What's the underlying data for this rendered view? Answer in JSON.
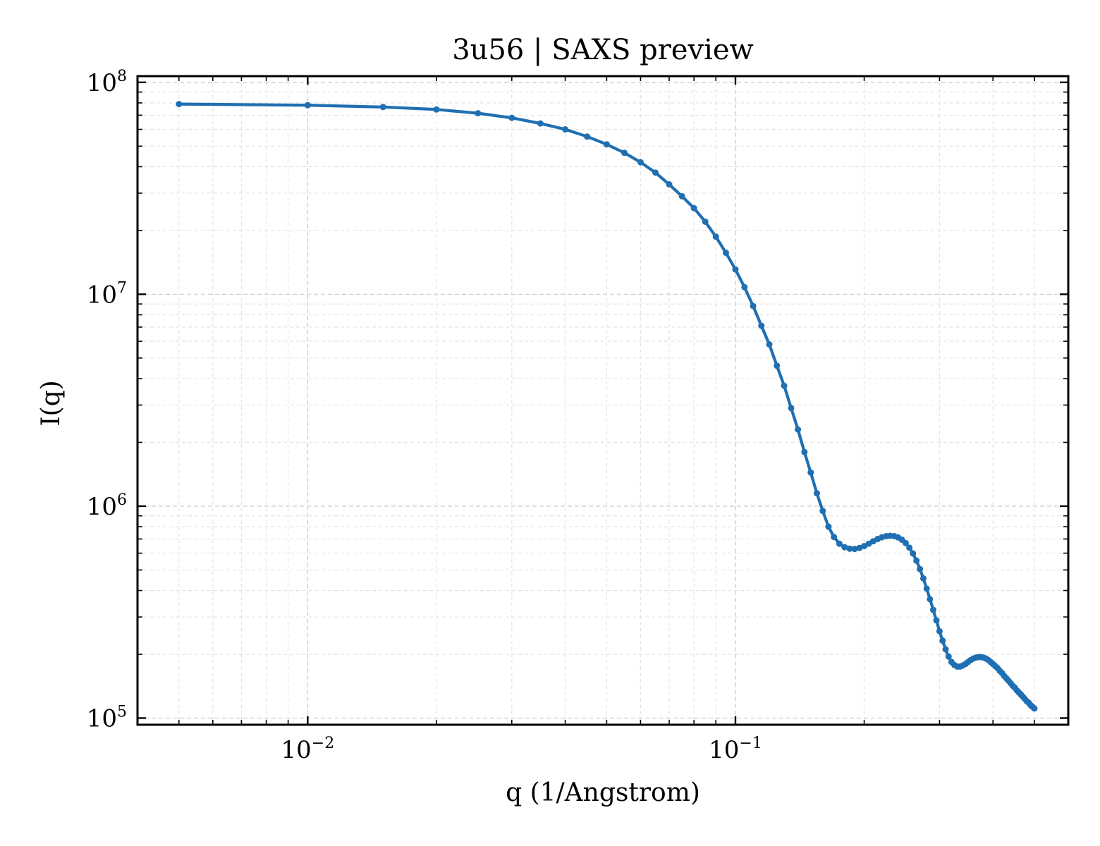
{
  "chart_data": {
    "type": "line",
    "title": "3u56 | SAXS preview",
    "xlabel": "q (1/Angstrom)",
    "ylabel": "I(q)",
    "xscale": "log",
    "yscale": "log",
    "xlim": [
      0.004,
      0.6
    ],
    "ylim": [
      93000,
      107000000
    ],
    "grid": true,
    "x_ticks": [
      {
        "value": 0.01,
        "base": "10",
        "exp": "−2"
      },
      {
        "value": 0.1,
        "base": "10",
        "exp": "−1"
      }
    ],
    "y_ticks": [
      {
        "value": 100000,
        "base": "10",
        "exp": "5"
      },
      {
        "value": 1000000,
        "base": "10",
        "exp": "6"
      },
      {
        "value": 10000000,
        "base": "10",
        "exp": "7"
      },
      {
        "value": 100000000,
        "base": "10",
        "exp": "8"
      }
    ],
    "series": [
      {
        "color": "#1f6fb2",
        "marker": "dot",
        "x": [
          0.005,
          0.01,
          0.015,
          0.02,
          0.025,
          0.03,
          0.035,
          0.04,
          0.045,
          0.05,
          0.055,
          0.06,
          0.065,
          0.07,
          0.075,
          0.08,
          0.085,
          0.09,
          0.095,
          0.1,
          0.105,
          0.11,
          0.115,
          0.12,
          0.125,
          0.13,
          0.135,
          0.14,
          0.145,
          0.15,
          0.155,
          0.16,
          0.165,
          0.17,
          0.175,
          0.18,
          0.185,
          0.19,
          0.195,
          0.2,
          0.205,
          0.21,
          0.215,
          0.22,
          0.225,
          0.23,
          0.235,
          0.24,
          0.245,
          0.25,
          0.255,
          0.26,
          0.265,
          0.27,
          0.275,
          0.28,
          0.285,
          0.29,
          0.295,
          0.3,
          0.305,
          0.31,
          0.315,
          0.32,
          0.325,
          0.33,
          0.335,
          0.34,
          0.345,
          0.35,
          0.355,
          0.36,
          0.365,
          0.37,
          0.375,
          0.38,
          0.385,
          0.39,
          0.395,
          0.4,
          0.405,
          0.41,
          0.415,
          0.42,
          0.425,
          0.43,
          0.435,
          0.44,
          0.445,
          0.45,
          0.455,
          0.46,
          0.465,
          0.47,
          0.475,
          0.48,
          0.485,
          0.49,
          0.495,
          0.5
        ],
        "y": [
          79000000,
          78000000,
          76500000,
          74500000,
          71500000,
          68000000,
          64000000,
          60000000,
          55500000,
          51000000,
          46500000,
          42000000,
          37500000,
          33000000,
          29000000,
          25500000,
          22000000,
          18700000,
          15700000,
          13100000,
          10800000,
          8800000,
          7100000,
          5800000,
          4600000,
          3700000,
          2900000,
          2300000,
          1800000,
          1440000,
          1150000,
          950000,
          800000,
          715000,
          665000,
          640000,
          630000,
          628000,
          635000,
          648000,
          665000,
          683000,
          700000,
          713000,
          722000,
          725000,
          722000,
          712000,
          695000,
          670000,
          637000,
          598000,
          553000,
          505000,
          456000,
          408000,
          364000,
          324000,
          289000,
          257000,
          232000,
          211000,
          195000,
          184000,
          178000,
          175000,
          175000,
          177000,
          180000,
          184000,
          188000,
          191000,
          193000,
          194000,
          194000,
          193000,
          191000,
          188000,
          184000,
          180000,
          176000,
          172000,
          167000,
          163000,
          158000,
          154000,
          150000,
          146000,
          142000,
          139000,
          135000,
          132000,
          129000,
          126000,
          123000,
          120000,
          118000,
          115000,
          113000,
          111000
        ]
      }
    ]
  }
}
